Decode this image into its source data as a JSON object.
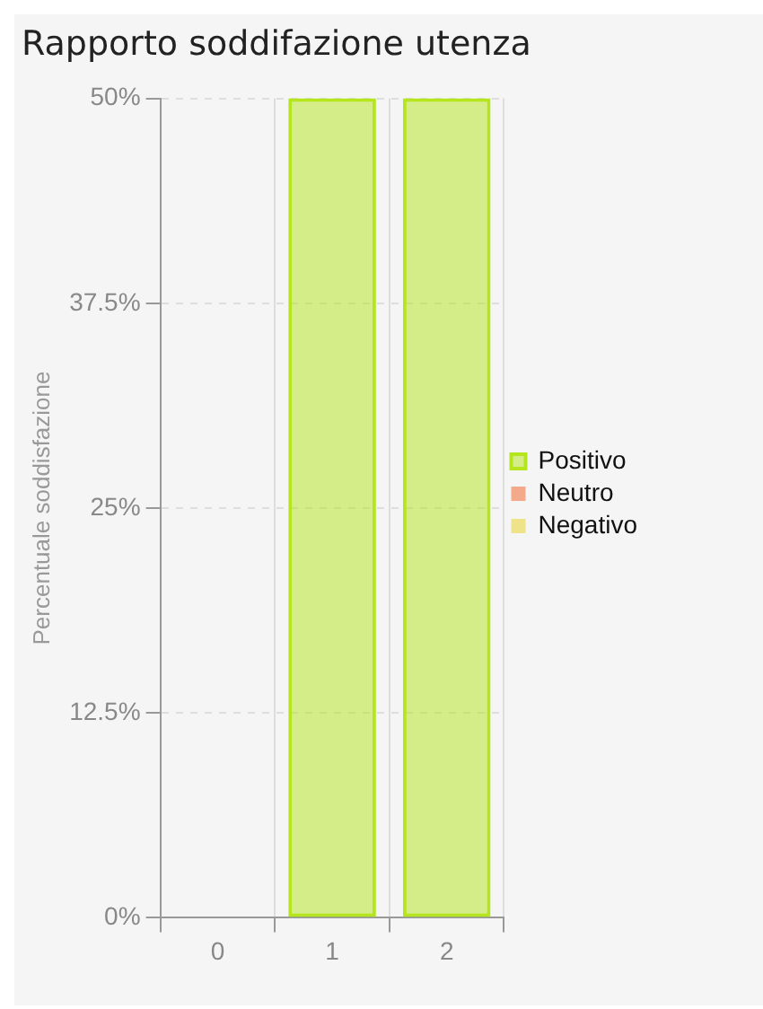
{
  "chart_data": {
    "type": "bar",
    "title": "Rapporto soddifazione utenza",
    "ylabel": "Percentuale soddisfazione",
    "categories": [
      "0",
      "1",
      "2"
    ],
    "stacked": true,
    "series": [
      {
        "name": "Positivo",
        "color": "#b5e61d",
        "values": [
          0,
          50,
          50
        ]
      },
      {
        "name": "Neutro",
        "color": "#f06020",
        "values": [
          0,
          0,
          0
        ]
      },
      {
        "name": "Negativo",
        "color": "#e8d020",
        "values": [
          0,
          0,
          0
        ]
      }
    ],
    "ylim": [
      0,
      50
    ],
    "yticks": [
      {
        "value": 0,
        "label": "0%"
      },
      {
        "value": 12.5,
        "label": "12.5%"
      },
      {
        "value": 25,
        "label": "25%"
      },
      {
        "value": 37.5,
        "label": "37.5%"
      },
      {
        "value": 50,
        "label": "50%"
      }
    ],
    "grid": true,
    "legend": "right"
  }
}
